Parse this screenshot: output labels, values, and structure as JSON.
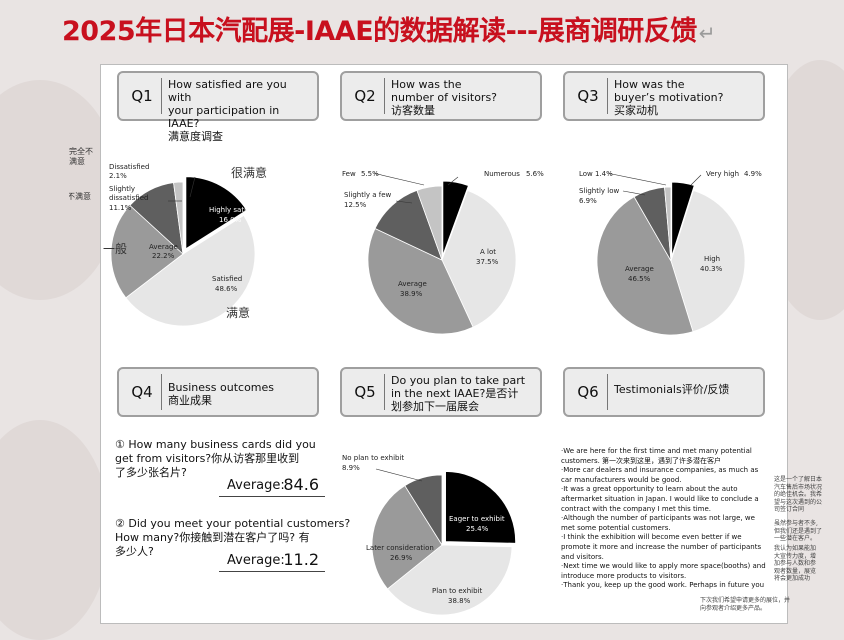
{
  "page": {
    "title": "2025年日本汽配展-IAAE的数据解读---展商调研反馈",
    "return_mark": "↵"
  },
  "questions": [
    {
      "num": "Q1",
      "lines": [
        "How satisfied are you with",
        "your participation in IAAE?",
        "满意度调查"
      ]
    },
    {
      "num": "Q2",
      "lines": [
        "How was the",
        "number of visitors?",
        "访客数量"
      ]
    },
    {
      "num": "Q3",
      "lines": [
        "How was the",
        "buyer’s motivation?",
        "买家动机"
      ]
    },
    {
      "num": "Q4",
      "lines": [
        "Business outcomes",
        "商业成果"
      ]
    },
    {
      "num": "Q5",
      "lines": [
        "Do you plan to take part",
        "in the next IAAE?是否计",
        "划参加下一届展会"
      ]
    },
    {
      "num": "Q6",
      "lines": [
        "Testimonials评价/反馈"
      ]
    }
  ],
  "chart_data": [
    {
      "type": "pie",
      "question": "Q1",
      "series": [
        {
          "label": "Highly satisfied",
          "pct": "16.0%",
          "value": 16.0,
          "color": "#000000"
        },
        {
          "label": "Satisfied",
          "pct": "48.6%",
          "value": 48.6,
          "color": "#e6e6e6"
        },
        {
          "label": "Average",
          "pct": "22.2%",
          "value": 22.2,
          "color": "#9a9a9a"
        },
        {
          "label": "Slightly dissatisfied",
          "label_lines": [
            "Slightly",
            "dissatisfied"
          ],
          "pct": "11.1%",
          "value": 11.1,
          "color": "#5f5f5f"
        },
        {
          "label": "Dissatisfied",
          "pct": "2.1%",
          "value": 2.1,
          "color": "#c4c4c4"
        }
      ],
      "cn_annotations": {
        "dissatisfied": [
          "完全不",
          "满意"
        ],
        "slightly": "有点不满意",
        "highly": "很满意",
        "average": "一般",
        "satisfied": "满意"
      }
    },
    {
      "type": "pie",
      "question": "Q2",
      "series": [
        {
          "label": "Numerous",
          "pct": "5.6%",
          "value": 5.6,
          "color": "#000000"
        },
        {
          "label": "A lot",
          "pct": "37.5%",
          "value": 37.5,
          "color": "#e6e6e6"
        },
        {
          "label": "Average",
          "pct": "38.9%",
          "value": 38.9,
          "color": "#9a9a9a"
        },
        {
          "label": "Slightly a few",
          "pct": "12.5%",
          "value": 12.5,
          "color": "#5f5f5f"
        },
        {
          "label": "Few",
          "pct": "5.5%",
          "value": 5.5,
          "color": "#c4c4c4"
        }
      ]
    },
    {
      "type": "pie",
      "question": "Q3",
      "series": [
        {
          "label": "Very high",
          "pct": "4.9%",
          "value": 4.9,
          "color": "#000000"
        },
        {
          "label": "High",
          "pct": "40.3%",
          "value": 40.3,
          "color": "#e6e6e6"
        },
        {
          "label": "Average",
          "pct": "46.5%",
          "value": 46.5,
          "color": "#9a9a9a"
        },
        {
          "label": "Slightly low",
          "pct": "6.9%",
          "value": 6.9,
          "color": "#5f5f5f"
        },
        {
          "label": "Low",
          "pct": "1.4%",
          "value": 1.4,
          "color": "#c4c4c4"
        }
      ]
    },
    {
      "type": "pie",
      "question": "Q5",
      "series": [
        {
          "label": "Eager to exhibit",
          "pct": "25.4%",
          "value": 25.4,
          "color": "#000000"
        },
        {
          "label": "Plan to exhibit",
          "pct": "38.8%",
          "value": 38.8,
          "color": "#e6e6e6"
        },
        {
          "label": "Later consideration",
          "pct": "26.9%",
          "value": 26.9,
          "color": "#9a9a9a"
        },
        {
          "label": "No plan to exhibit",
          "pct": "8.9%",
          "value": 8.9,
          "color": "#5f5f5f"
        }
      ]
    }
  ],
  "business": {
    "q1_lines": [
      "① How many business cards did you",
      "get from visitors?你从访客那里收到",
      "了多少张名片?"
    ],
    "q1_avg_label": "Average:",
    "q1_avg_value": "84.6",
    "q2_lines": [
      "② Did you meet your potential customers?",
      "How many?你接触到潜在客户了吗? 有",
      "多少人?"
    ],
    "q2_avg_label": "Average:",
    "q2_avg_value": "11.2"
  },
  "testimonials": [
    "·We are here for the first time and met many potential",
    "  customers.  第一次来到这里，遇到了许多潜在客户",
    "·More car dealers and insurance companies, as much as",
    "  car manufacturers would be good.",
    "·It was a great opportunity to learn about the auto",
    "  aftermarket situation in Japan. I would like to conclude a",
    "  contract with the company I met this time.",
    "  ·Although the number of participants was not large,  we",
    "  met some potential customers.",
    "·I think the exhibition will become even better if we",
    "  promote it more and increase the number of participants",
    "  and visitors.",
    "·Next time we would like to apply more space(booths) and",
    "  introduce more products to visitors.",
    "·Thank you, keep up the good work. Perhaps in future you"
  ],
  "side_notes": [
    [
      "这是一个了解日本",
      "汽车售后市场状况",
      "的绝佳机会。我希",
      "望与这次遇到的公",
      "司签订合同"
    ],
    [
      "虽然参与者不多,",
      "但我们还是遇到了",
      "一些潜在客户。"
    ],
    [
      "我认为如果能加",
      "大宣传力度，增",
      "加参与人数和参",
      "观者数量，展览",
      "将会更加成功"
    ],
    [
      "下次我们希望申请更多的展位，并",
      "向参观者介绍更多产品。"
    ]
  ]
}
